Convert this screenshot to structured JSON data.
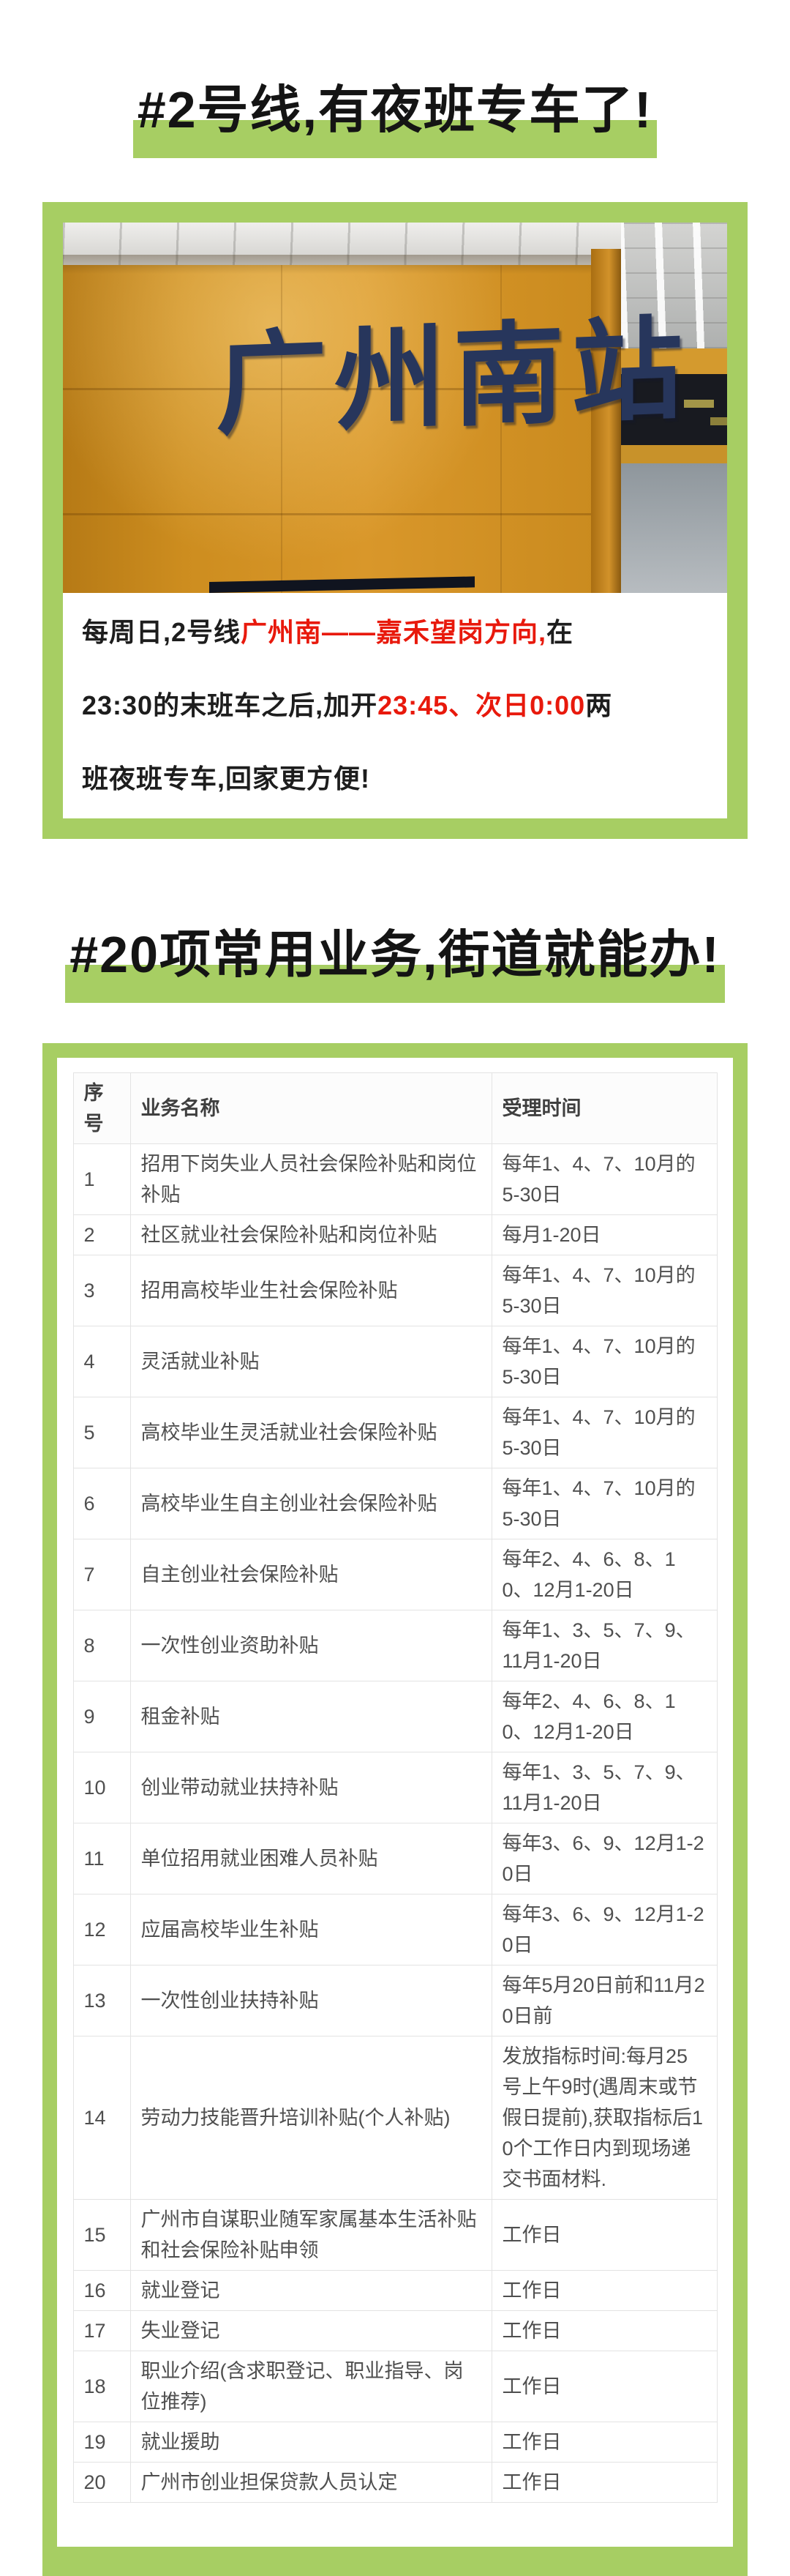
{
  "colors": {
    "accent_green": "#a7ce63",
    "accent_red": "#e8190c",
    "banner_text": "#141414",
    "paragraph_text": "#1d1d1d",
    "table_text": "#4f4f4f",
    "table_border": "#e3e3e3",
    "photo_wall_orange": "#cf8c20",
    "photo_sign_blue": "#27365c"
  },
  "banner1": {
    "text": "#2号线,有夜班专车了!"
  },
  "banner2": {
    "text": "#20项常用业务,街道就能办!"
  },
  "photo": {
    "sign_text": "广州南站"
  },
  "paragraph": {
    "lines": [
      [
        {
          "t": "每周日,2号线",
          "red": false
        },
        {
          "t": "广州南——嘉禾望岗方向,",
          "red": true
        },
        {
          "t": "在",
          "red": false
        }
      ],
      [
        {
          "t": "23:30的末班车之后,加开",
          "red": false
        },
        {
          "t": "23:45、次日0:00",
          "red": true
        },
        {
          "t": "两",
          "red": false
        }
      ],
      [
        {
          "t": "班夜班专车,回家更方便!",
          "red": false
        }
      ]
    ]
  },
  "table": {
    "headers": [
      "序号",
      "业务名称",
      "受理时间"
    ],
    "rows": [
      [
        "1",
        "招用下岗失业人员社会保险补贴和岗位补贴",
        "每年1、4、7、10月的5-30日"
      ],
      [
        "2",
        "社区就业社会保险补贴和岗位补贴",
        "每月1-20日"
      ],
      [
        "3",
        "招用高校毕业生社会保险补贴",
        "每年1、4、7、10月的5-30日"
      ],
      [
        "4",
        "灵活就业补贴",
        "每年1、4、7、10月的5-30日"
      ],
      [
        "5",
        "高校毕业生灵活就业社会保险补贴",
        "每年1、4、7、10月的5-30日"
      ],
      [
        "6",
        "高校毕业生自主创业社会保险补贴",
        "每年1、4、7、10月的5-30日"
      ],
      [
        "7",
        "自主创业社会保险补贴",
        "每年2、4、6、8、10、12月1-20日"
      ],
      [
        "8",
        "一次性创业资助补贴",
        "每年1、3、5、7、9、11月1-20日"
      ],
      [
        "9",
        "租金补贴",
        "每年2、4、6、8、10、12月1-20日"
      ],
      [
        "10",
        "创业带动就业扶持补贴",
        "每年1、3、5、7、9、11月1-20日"
      ],
      [
        "11",
        "单位招用就业困难人员补贴",
        "每年3、6、9、12月1-20日"
      ],
      [
        "12",
        "应届高校毕业生补贴",
        "每年3、6、9、12月1-20日"
      ],
      [
        "13",
        "一次性创业扶持补贴",
        "每年5月20日前和11月20日前"
      ],
      [
        "14",
        "劳动力技能晋升培训补贴(个人补贴)",
        "发放指标时间:每月25号上午9时(遇周末或节假日提前),获取指标后10个工作日内到现场递交书面材料."
      ],
      [
        "15",
        "广州市自谋职业随军家属基本生活补贴和社会保险补贴申领",
        "工作日"
      ],
      [
        "16",
        "就业登记",
        "工作日"
      ],
      [
        "17",
        "失业登记",
        "工作日"
      ],
      [
        "18",
        "职业介绍(含求职登记、职业指导、岗位推荐)",
        "工作日"
      ],
      [
        "19",
        "就业援助",
        "工作日"
      ],
      [
        "20",
        "广州市创业担保贷款人员认定",
        "工作日"
      ]
    ]
  }
}
